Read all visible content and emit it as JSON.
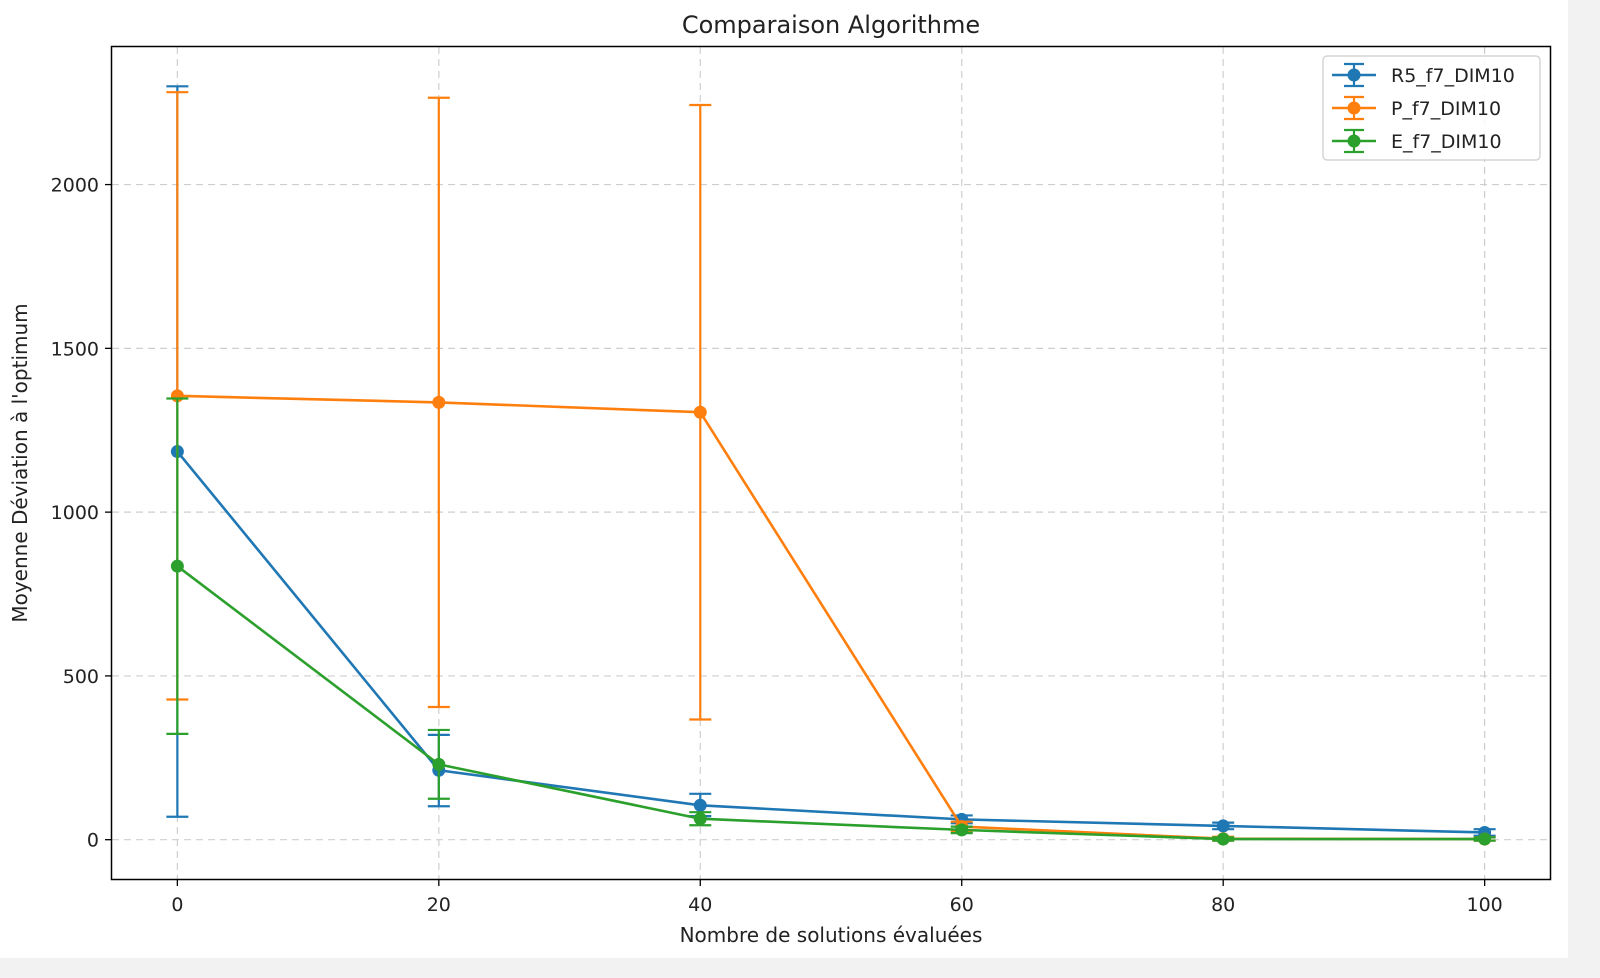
{
  "chart_data": {
    "type": "line",
    "title": "Comparaison Algorithme",
    "xlabel": "Nombre de solutions évaluées",
    "ylabel": "Moyenne Déviation à l'optimum",
    "x": [
      0,
      20,
      40,
      60,
      80,
      100
    ],
    "xticks": [
      "0",
      "20",
      "40",
      "60",
      "80",
      "100"
    ],
    "yticks": [
      "0",
      "500",
      "1000",
      "1500",
      "2000"
    ],
    "xlim": [
      -5,
      105
    ],
    "ylim": [
      -120,
      2420
    ],
    "grid": true,
    "legend_position": "top-right",
    "error_bars": true,
    "series": [
      {
        "name": "R5_f7_DIM10",
        "color": "#1f77b4",
        "values": [
          1185,
          212,
          105,
          62,
          42,
          22
        ],
        "err_low": [
          70,
          102,
          72,
          50,
          32,
          12
        ],
        "err_high": [
          2300,
          320,
          140,
          74,
          52,
          32
        ]
      },
      {
        "name": "P_f7_DIM10",
        "color": "#ff7f0e",
        "values": [
          1355,
          1335,
          1305,
          40,
          3,
          2
        ],
        "err_low": [
          428,
          405,
          367,
          25,
          -3,
          -3
        ],
        "err_high": [
          2282,
          2265,
          2243,
          55,
          9,
          7
        ]
      },
      {
        "name": "E_f7_DIM10",
        "color": "#2ca02c",
        "values": [
          835,
          230,
          64,
          30,
          2,
          2
        ],
        "err_low": [
          323,
          125,
          44,
          20,
          -3,
          -3
        ],
        "err_high": [
          1347,
          335,
          84,
          40,
          7,
          7
        ]
      }
    ]
  }
}
